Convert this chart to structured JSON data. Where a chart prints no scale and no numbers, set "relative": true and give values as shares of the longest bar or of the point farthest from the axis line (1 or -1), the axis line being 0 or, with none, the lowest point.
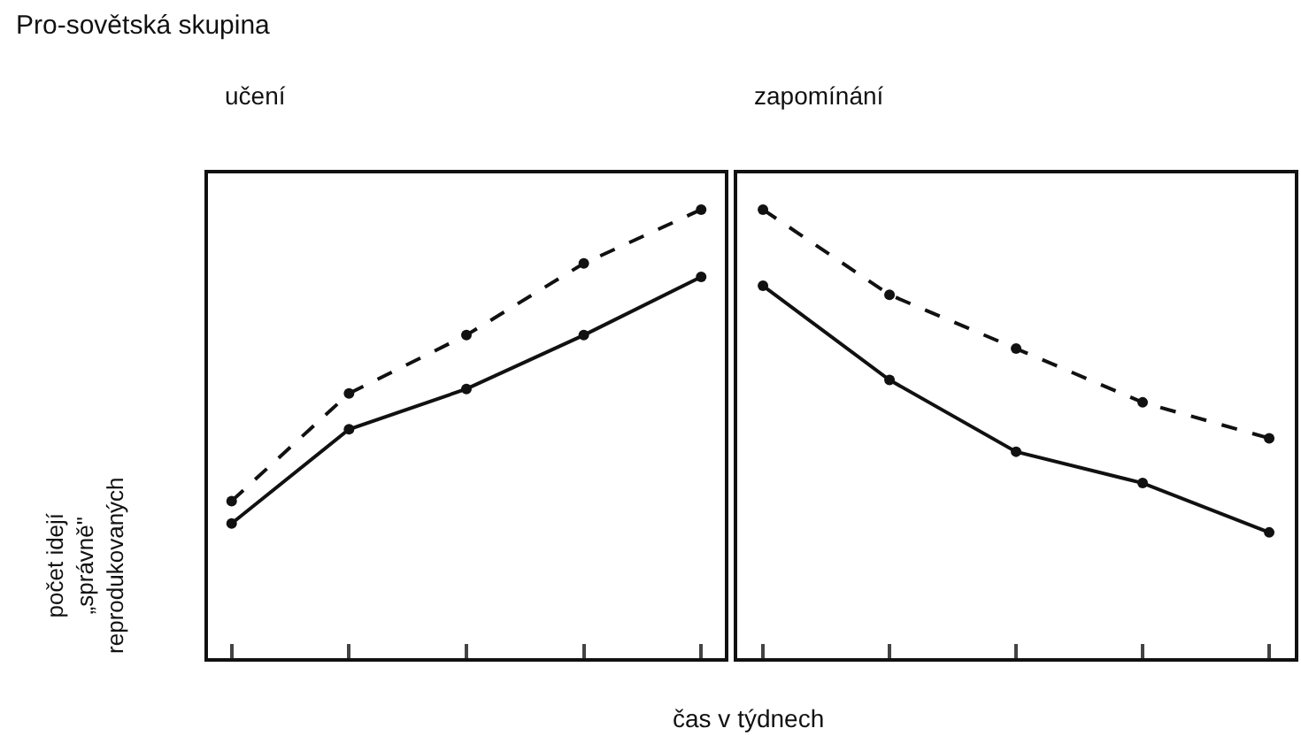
{
  "chart_data": [
    {
      "type": "line",
      "title": "Pro-sovětská skupina",
      "subtitle": "učení",
      "ylabel": "počet idejí\n„správně\"\nreprodukovaných",
      "relative": true,
      "categories": [
        null,
        null,
        null,
        null,
        null
      ],
      "marker": "circle",
      "series": [
        {
          "color": "#111111",
          "line_style": "dashed",
          "values": [
            0.35,
            0.59,
            0.72,
            0.88,
            1.0
          ]
        },
        {
          "color": "#111111",
          "line_style": "solid",
          "values": [
            0.3,
            0.51,
            0.6,
            0.72,
            0.85
          ]
        }
      ]
    },
    {
      "type": "line",
      "subtitle": "zapomínání",
      "xlabel": "čas v týdnech",
      "relative": true,
      "categories": [
        null,
        null,
        null,
        null,
        null
      ],
      "marker": "circle",
      "series": [
        {
          "color": "#111111",
          "line_style": "dashed",
          "values": [
            1.0,
            0.81,
            0.69,
            0.57,
            0.49
          ]
        },
        {
          "color": "#111111",
          "line_style": "solid",
          "values": [
            0.83,
            0.62,
            0.46,
            0.39,
            0.28
          ]
        }
      ]
    }
  ]
}
